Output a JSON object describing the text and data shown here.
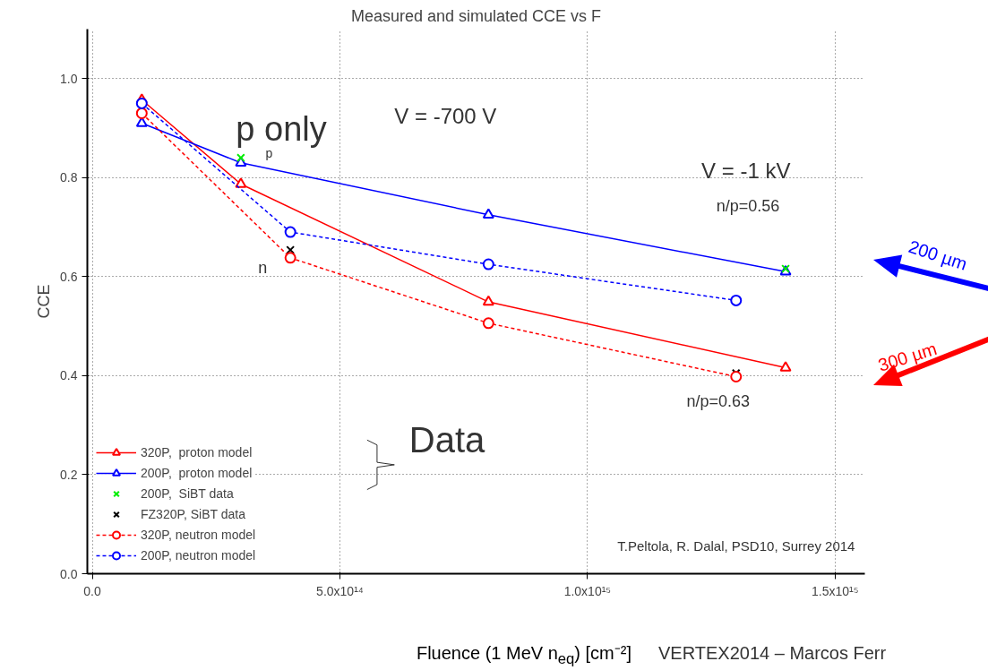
{
  "chart_data": {
    "type": "line",
    "title": "Measured and simulated CCE vs F",
    "xlabel": "Fluence (1 MeV n$_{eq}$) [cm⁻²]",
    "ylabel": "CCE",
    "xlim": [
      -10000000000000.0,
      1560000000000000.0
    ],
    "ylim": [
      0,
      1.1
    ],
    "xticks": [
      {
        "value": 0,
        "label": "0.0"
      },
      {
        "value": 500000000000000.0,
        "label": "5.0x10¹⁴"
      },
      {
        "value": 1000000000000000.0,
        "label": "1.0x10¹⁵"
      },
      {
        "value": 1500000000000000.0,
        "label": "1.5x10¹⁵"
      }
    ],
    "yticks": [
      {
        "value": 0,
        "label": "0.0"
      },
      {
        "value": 0.2,
        "label": "0.2"
      },
      {
        "value": 0.4,
        "label": "0.4"
      },
      {
        "value": 0.6,
        "label": "0.6"
      },
      {
        "value": 0.8,
        "label": "0.8"
      },
      {
        "value": 1.0,
        "label": "1.0"
      }
    ],
    "grid": true,
    "legend": "bottom left",
    "series": [
      {
        "name": "320P,  proton model",
        "color": "#ff0000",
        "marker": "triangle",
        "line_style": "solid",
        "x": [
          100000000000000.0,
          300000000000000.0,
          800000000000000.0,
          1400000000000000.0
        ],
        "values": [
          0.957,
          0.787,
          0.549,
          0.416
        ]
      },
      {
        "name": "200P,  proton model",
        "color": "#0000ff",
        "marker": "triangle",
        "line_style": "solid",
        "x": [
          100000000000000.0,
          300000000000000.0,
          800000000000000.0,
          1400000000000000.0
        ],
        "values": [
          0.91,
          0.83,
          0.725,
          0.61
        ]
      },
      {
        "name": "200P,  SiBT data",
        "color": "#00ee00",
        "type": "scatter",
        "marker": "cross",
        "x": [
          300000000000000.0,
          1400000000000000.0
        ],
        "values": [
          0.84,
          0.616
        ]
      },
      {
        "name": "FZ320P, SiBT data",
        "color": "#000000",
        "type": "scatter",
        "marker": "cross",
        "x": [
          400000000000000.0,
          1300000000000000.0
        ],
        "values": [
          0.654,
          0.405
        ]
      },
      {
        "name": "320P, neutron model",
        "color": "#ff0000",
        "marker": "circle",
        "line_style": "dashed",
        "x": [
          100000000000000.0,
          400000000000000.0,
          800000000000000.0,
          1300000000000000.0
        ],
        "values": [
          0.93,
          0.638,
          0.506,
          0.398
        ]
      },
      {
        "name": "200P, neutron model",
        "color": "#0000ff",
        "marker": "circle",
        "line_style": "dashed",
        "x": [
          100000000000000.0,
          400000000000000.0,
          800000000000000.0,
          1300000000000000.0
        ],
        "values": [
          0.95,
          0.69,
          0.625,
          0.552
        ]
      }
    ],
    "annotations": [
      "p only",
      "p",
      "V = -700 V",
      "V = -1 kV",
      "n/p=0.56",
      "n",
      "n/p=0.63",
      "Data",
      "T.Peltola, R. Dalal, PSD10, Surrey 2014",
      "200 µm",
      "300 µm",
      "VERTEX2014 – Marcos Ferr"
    ]
  }
}
